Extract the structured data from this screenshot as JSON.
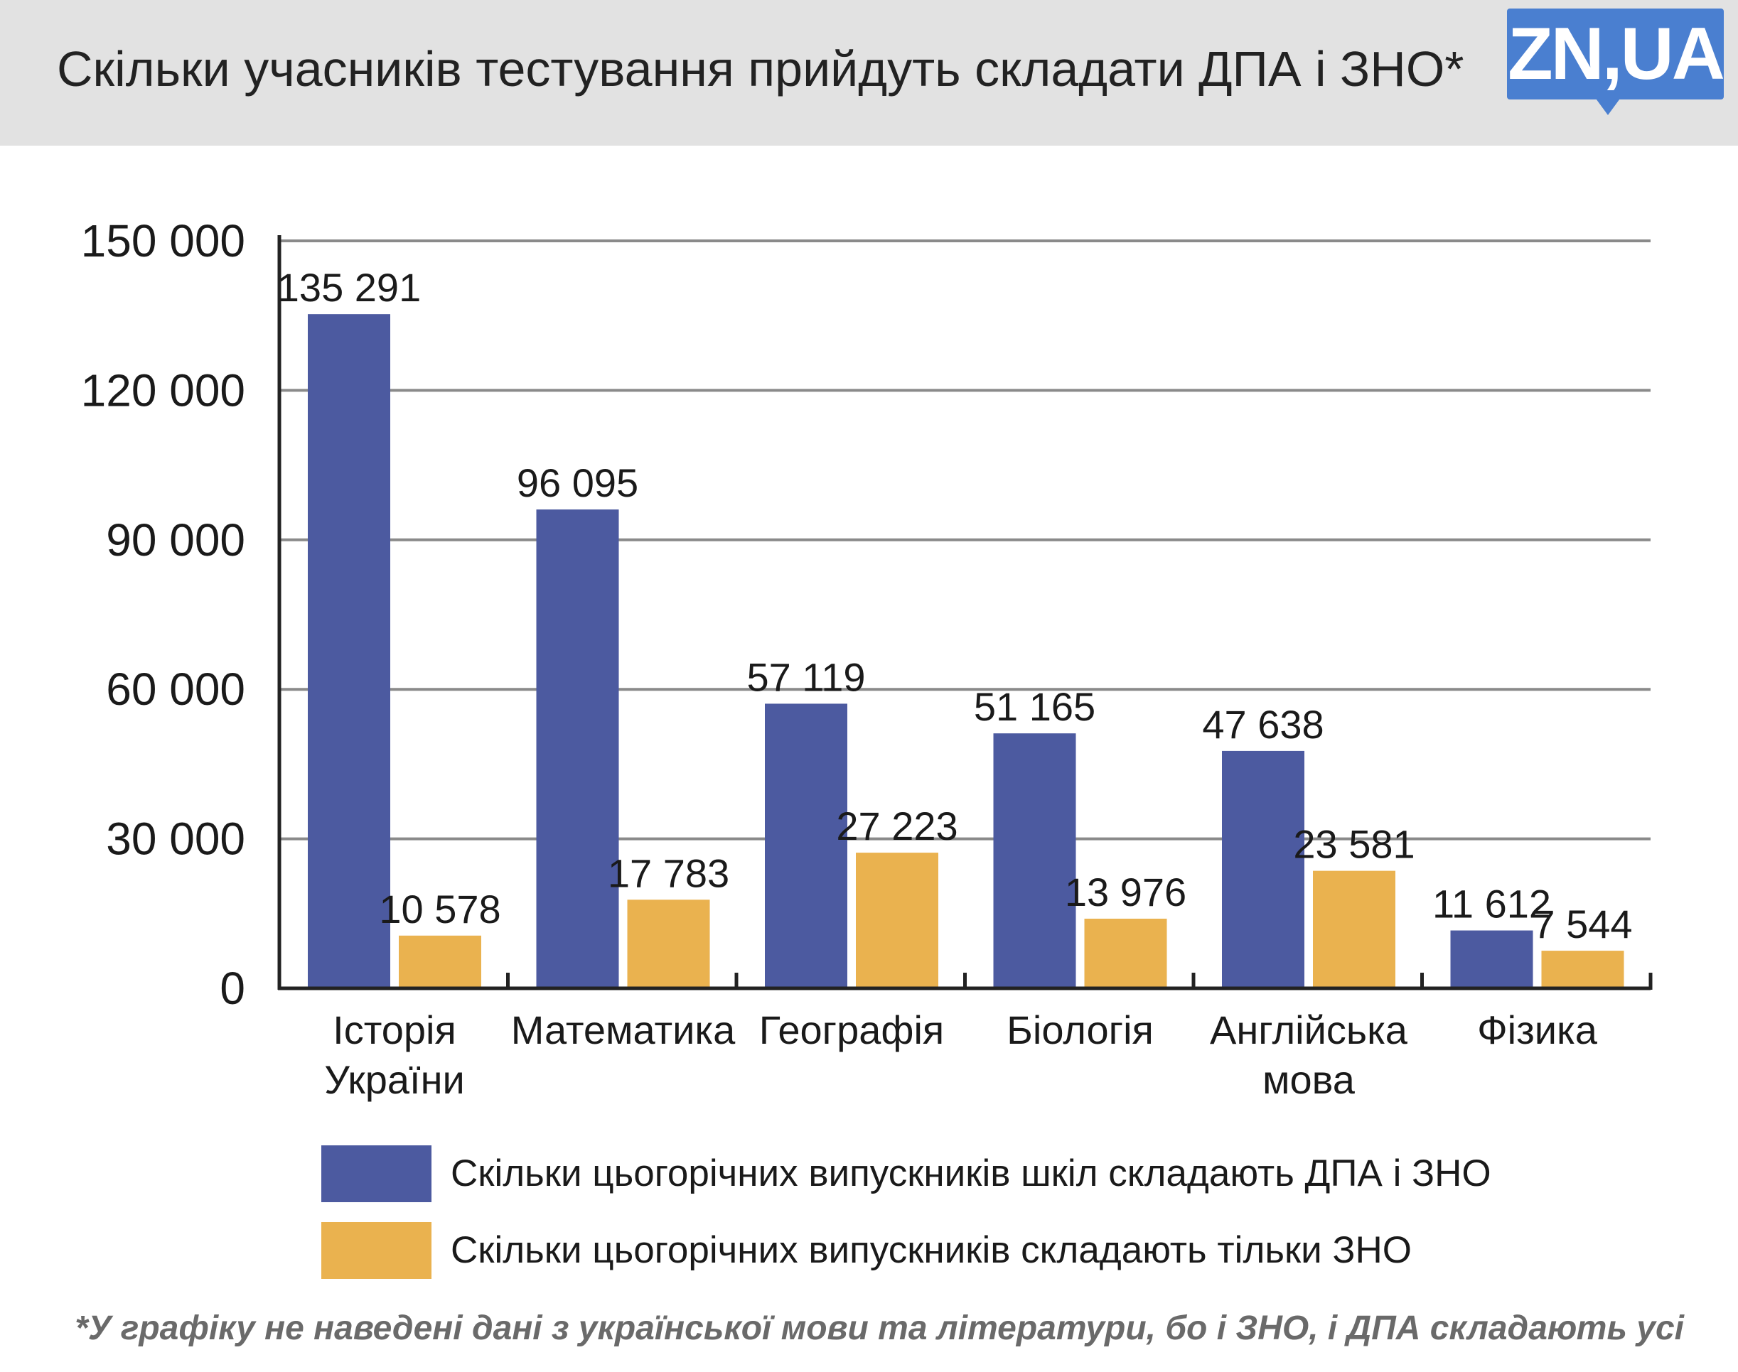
{
  "header": {
    "title": "Скільки учасників тестування прийдуть складати ДПА і ЗНО*",
    "logo_text": "ZN,UA",
    "logo_color": "#4a7fd0"
  },
  "chart_data": {
    "type": "bar",
    "title": "Скільки учасників тестування прийдуть складати ДПА і ЗНО*",
    "categories": [
      [
        "Історія",
        "України"
      ],
      [
        "Математика"
      ],
      [
        "Географія"
      ],
      [
        "Біологія"
      ],
      [
        "Англійська",
        "мова"
      ],
      [
        "Фізика"
      ]
    ],
    "series": [
      {
        "name": "Скільки цьогорічних випускників шкіл складають ДПА і ЗНО",
        "values": [
          135291,
          96095,
          57119,
          51165,
          47638,
          11612
        ],
        "labels": [
          "135 291",
          "96 095",
          "57 119",
          "51 165",
          "47 638",
          "11 612"
        ],
        "color": "#4c5aa0"
      },
      {
        "name": "Скільки цьогорічних випускників складають тільки ЗНО",
        "values": [
          10578,
          17783,
          27223,
          13976,
          23581,
          7544
        ],
        "labels": [
          "10 578",
          "17 783",
          "27 223",
          "13 976",
          "23 581",
          "7 544"
        ],
        "color": "#eab24f"
      }
    ],
    "ylim": [
      0,
      150000
    ],
    "yticks": [
      0,
      30000,
      60000,
      90000,
      120000,
      150000
    ],
    "ytick_labels": [
      "0",
      "30 000",
      "60 000",
      "90 000",
      "120 000",
      "150 000"
    ],
    "grid": true,
    "legend_position": "bottom"
  },
  "legend": [
    {
      "label": "Скільки цьогорічних випускників шкіл складають ДПА і ЗНО",
      "color": "#4c5aa0"
    },
    {
      "label": "Скільки цьогорічних випускників складають тільки ЗНО",
      "color": "#eab24f"
    }
  ],
  "footnote": "*У графіку не наведені дані з української мови та літератури, бо і ЗНО, і ДПА складають усі"
}
